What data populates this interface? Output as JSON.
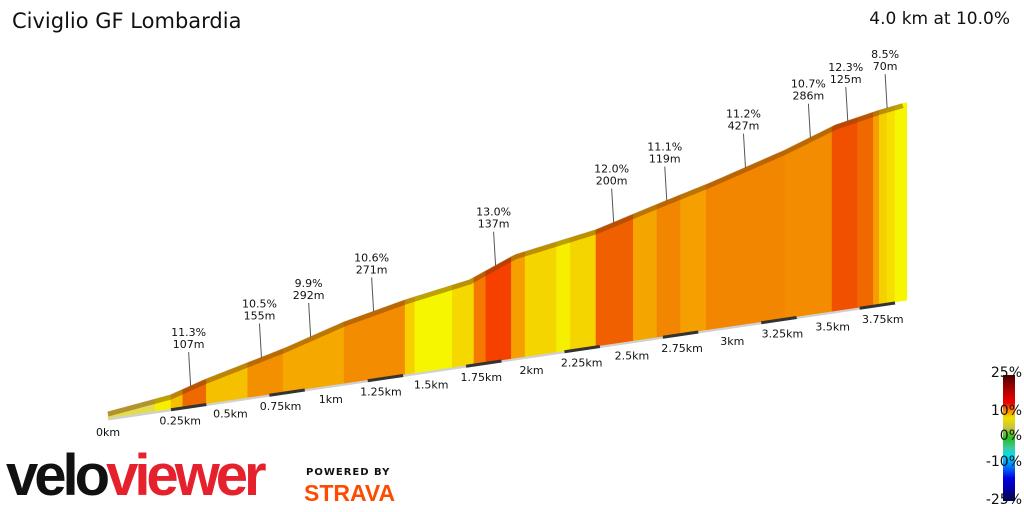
{
  "header": {
    "title": "Civiglio GF Lombardia",
    "summary": "4.0 km at 10.0%"
  },
  "chart_data": {
    "type": "area",
    "title": "Civiglio GF Lombardia",
    "xlabel": "",
    "ylabel": "",
    "x_ticks": [
      "0km",
      "0.25km",
      "0.5km",
      "0.75km",
      "1km",
      "1.25km",
      "1.5km",
      "1.75km",
      "2km",
      "2.25km",
      "2.5km",
      "2.75km",
      "3km",
      "3.25km",
      "3.5km",
      "3.75km"
    ],
    "x_tick_values": [
      0,
      0.25,
      0.5,
      0.75,
      1,
      1.25,
      1.5,
      1.75,
      2,
      2.25,
      2.5,
      2.75,
      3,
      3.25,
      3.5,
      3.75
    ],
    "profile_km_elev": [
      [
        0,
        0
      ],
      [
        0.32,
        16
      ],
      [
        0.49,
        37
      ],
      [
        0.72,
        60
      ],
      [
        0.9,
        78
      ],
      [
        1.2,
        114
      ],
      [
        1.51,
        141
      ],
      [
        1.84,
        163
      ],
      [
        2.07,
        201
      ],
      [
        2.48,
        228
      ],
      [
        2.81,
        264
      ],
      [
        3.06,
        290
      ],
      [
        3.44,
        335
      ],
      [
        3.7,
        372
      ],
      [
        3.92,
        389
      ],
      [
        4.06,
        397
      ]
    ],
    "segments": [
      {
        "from": 0,
        "to": 0.24,
        "color": "#e4dc50"
      },
      {
        "from": 0.24,
        "to": 0.32,
        "color": "#f6f000"
      },
      {
        "from": 0.32,
        "to": 0.38,
        "color": "#f5c000"
      },
      {
        "from": 0.38,
        "to": 0.5,
        "color": "#ee6a00"
      },
      {
        "from": 0.5,
        "to": 0.71,
        "color": "#f5c000"
      },
      {
        "from": 0.71,
        "to": 0.89,
        "color": "#f39000"
      },
      {
        "from": 0.89,
        "to": 1.2,
        "color": "#f5a800"
      },
      {
        "from": 1.2,
        "to": 1.51,
        "color": "#f38c00"
      },
      {
        "from": 1.51,
        "to": 1.56,
        "color": "#f7d000"
      },
      {
        "from": 1.56,
        "to": 1.75,
        "color": "#f6f600"
      },
      {
        "from": 1.75,
        "to": 1.86,
        "color": "#f5d800"
      },
      {
        "from": 1.86,
        "to": 1.92,
        "color": "#f57800"
      },
      {
        "from": 1.92,
        "to": 2.05,
        "color": "#f54000"
      },
      {
        "from": 2.05,
        "to": 2.12,
        "color": "#f5a000"
      },
      {
        "from": 2.12,
        "to": 2.28,
        "color": "#f5d500"
      },
      {
        "from": 2.28,
        "to": 2.35,
        "color": "#f6f000"
      },
      {
        "from": 2.35,
        "to": 2.48,
        "color": "#f5d500"
      },
      {
        "from": 2.48,
        "to": 2.67,
        "color": "#f06000"
      },
      {
        "from": 2.67,
        "to": 2.79,
        "color": "#f5a500"
      },
      {
        "from": 2.79,
        "to": 2.91,
        "color": "#f38600"
      },
      {
        "from": 2.91,
        "to": 3.04,
        "color": "#f5a000"
      },
      {
        "from": 3.04,
        "to": 3.44,
        "color": "#f38600"
      },
      {
        "from": 3.44,
        "to": 3.68,
        "color": "#f38c00"
      },
      {
        "from": 3.68,
        "to": 3.81,
        "color": "#f05000"
      },
      {
        "from": 3.81,
        "to": 3.89,
        "color": "#f06800"
      },
      {
        "from": 3.89,
        "to": 3.92,
        "color": "#f5a000"
      },
      {
        "from": 3.92,
        "to": 3.96,
        "color": "#f5d000"
      },
      {
        "from": 3.96,
        "to": 4.0,
        "color": "#f5e000"
      },
      {
        "from": 4.0,
        "to": 4.06,
        "color": "#f6f600"
      }
    ],
    "annotations": [
      {
        "km": 0.42,
        "grade": "11.3%",
        "length": "107m"
      },
      {
        "km": 0.78,
        "grade": "10.5%",
        "length": "155m"
      },
      {
        "km": 1.03,
        "grade": "9.9%",
        "length": "292m"
      },
      {
        "km": 1.35,
        "grade": "10.6%",
        "length": "271m"
      },
      {
        "km": 1.97,
        "grade": "13.0%",
        "length": "137m"
      },
      {
        "km": 2.57,
        "grade": "12.0%",
        "length": "200m"
      },
      {
        "km": 2.84,
        "grade": "11.1%",
        "length": "119m"
      },
      {
        "km": 3.24,
        "grade": "11.2%",
        "length": "427m"
      },
      {
        "km": 3.57,
        "grade": "10.7%",
        "length": "286m"
      },
      {
        "km": 3.76,
        "grade": "12.3%",
        "length": "125m"
      },
      {
        "km": 3.96,
        "grade": "8.5%",
        "length": "70m"
      }
    ],
    "legend": {
      "labels": [
        "25%",
        "10%",
        "0%",
        "-10%",
        "-25%"
      ],
      "range": [
        -25,
        25
      ],
      "placement": "bottom-right"
    }
  },
  "branding": {
    "logo_part1": "velo",
    "logo_part2": "viewer",
    "powered_by": "POWERED BY",
    "strava": "STRAVA"
  }
}
